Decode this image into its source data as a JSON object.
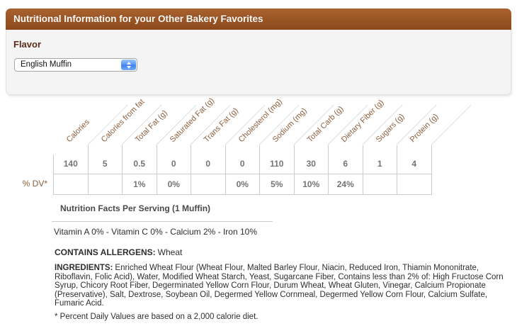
{
  "header": {
    "title": "Nutritional Information for your Other Bakery Favorites"
  },
  "flavor": {
    "label": "Flavor",
    "selected_option": "English Muffin"
  },
  "table": {
    "columns": [
      "Calories",
      "Calories from fat",
      "Total Fat (g)",
      "Saturated Fat (g)",
      "Trans Fat (g)",
      "Cholesterol (mg)",
      "Sodium (mg)",
      "Total Carb (g)",
      "Dietary Fiber (g)",
      "Sugars (g)",
      "Protein (g)"
    ],
    "values": [
      "140",
      "5",
      "0.5",
      "0",
      "0",
      "0",
      "110",
      "30",
      "6",
      "1",
      "4"
    ],
    "daily_values": [
      "",
      "",
      "1%",
      "0%",
      "",
      "0%",
      "5%",
      "10%",
      "24%",
      "",
      ""
    ],
    "dv_row_label": "% DV*"
  },
  "notes": {
    "serving": "Nutrition Facts Per Serving (1 Muffin)",
    "vitamins": "Vitamin A 0% - Vitamin C 0% - Calcium 2% - Iron 10%",
    "allergens_label": "CONTAINS ALLERGENS:",
    "allergens_value": "Wheat",
    "ingredients_label": "INGREDIENTS:",
    "ingredients_text": "Enriched Wheat Flour (Wheat Flour, Malted Barley Flour, Niacin, Reduced Iron, Thiamin Mononitrate, Riboflavin, Folic Acid), Water, Modified Wheat Starch, Yeast, Sugarcane Fiber, Contains less than 2% of: High Fructose Corn Syrup, Chicory Root Fiber, Degerminated Yellow Corn Flour, Durum Wheat, Wheat Gluten, Vinegar, Calcium Propionate (Preservative), Salt, Dextrose, Soybean Oil, Degermed Yellow Cornmeal, Degermed Yellow Corn Flour, Calcium Sulfate, Fumaric Acid.",
    "footnote": "* Percent Daily Values are based on a 2,000 calorie diet."
  },
  "colors": {
    "header_bar_brown": "#9a5526",
    "label_maroon": "#5a2b18",
    "table_header_brown": "#8c5e3c",
    "value_gray": "#747474",
    "stepper_blue": "#4a8ff0",
    "border_gray": "#cccccc"
  }
}
